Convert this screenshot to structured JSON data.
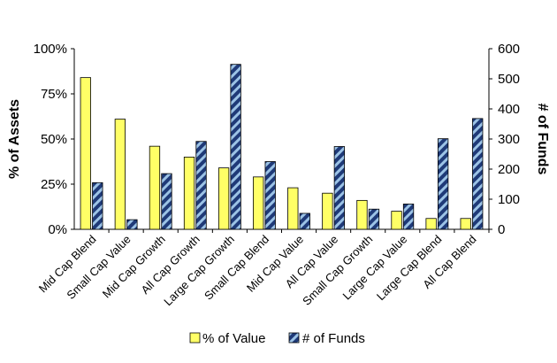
{
  "chart_data": {
    "type": "bar",
    "title": "",
    "xlabel": "",
    "ylabel": "% of Assets",
    "y2label": "# of Funds",
    "categories": [
      "Mid Cap Blend",
      "Small Cap Value",
      "Mid Cap Growth",
      "All Cap Growth",
      "Large Cap Growth",
      "Small Cap Blend",
      "Mid Cap Value",
      "All Cap Value",
      "Small Cap Growth",
      "Large Cap Value",
      "Large Cap Blend",
      "All Cap Blend"
    ],
    "series": [
      {
        "name": "% of Value",
        "axis": "left",
        "unit": "%",
        "color": "#ffff66",
        "values": [
          84,
          61,
          46,
          40,
          34,
          29,
          23,
          20,
          16,
          10,
          6,
          6
        ]
      },
      {
        "name": "# of Funds",
        "axis": "right",
        "color": "#1f3a78",
        "hatch": "#9cc3e6",
        "values": [
          155,
          32,
          185,
          292,
          548,
          225,
          53,
          275,
          67,
          84,
          301,
          368
        ]
      }
    ],
    "ylim": [
      0,
      100
    ],
    "y2lim": [
      0,
      600
    ],
    "yticks": [
      "0%",
      "25%",
      "50%",
      "75%",
      "100%"
    ],
    "y2ticks": [
      "0",
      "100",
      "200",
      "300",
      "400",
      "500",
      "600"
    ],
    "grid": false,
    "legend": "bottom"
  }
}
